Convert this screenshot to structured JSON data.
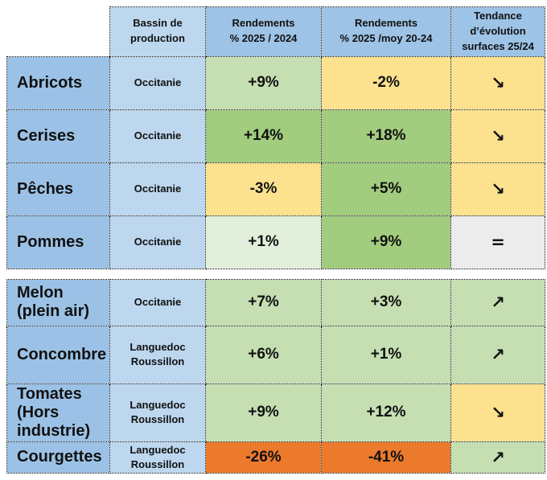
{
  "colors": {
    "header_blue": "#9DC3E6",
    "light_blue": "#BDD7EE",
    "name_blue": "#9BC2E6",
    "light_green": "#C5DFB3",
    "med_green": "#A2CC7E",
    "pale_green": "#E2EFDA",
    "yellow": "#FCE18F",
    "orange": "#EC7A2C",
    "gray": "#ECECEC",
    "border": "#000000"
  },
  "chart_data": {
    "type": "table",
    "columns": [
      {
        "label": "Bassin de\nproduction",
        "bg": "light_blue"
      },
      {
        "label": "Rendements\n% 2025 / 2024",
        "bg": "header_blue"
      },
      {
        "label": "Rendements\n% 2025 /moy 20-24",
        "bg": "header_blue"
      },
      {
        "label": "Tendance\nd’évolution\nsurfaces 25/24",
        "bg": "header_blue"
      }
    ],
    "rows": [
      {
        "section": "fruits",
        "name": "Abricots",
        "bassin": "Occitanie",
        "r1": "+9%",
        "r1_color": "light_green",
        "r2": "-2%",
        "r2_color": "yellow",
        "trend": "↘",
        "trend_color": "yellow"
      },
      {
        "section": "fruits",
        "name": "Cerises",
        "bassin": "Occitanie",
        "r1": "+14%",
        "r1_color": "med_green",
        "r2": "+18%",
        "r2_color": "med_green",
        "trend": "↘",
        "trend_color": "yellow"
      },
      {
        "section": "fruits",
        "name": "Pêches",
        "bassin": "Occitanie",
        "r1": "-3%",
        "r1_color": "yellow",
        "r2": "+5%",
        "r2_color": "med_green",
        "trend": "↘",
        "trend_color": "yellow"
      },
      {
        "section": "fruits",
        "name": "Pommes",
        "bassin": "Occitanie",
        "r1": "+1%",
        "r1_color": "pale_green",
        "r2": "+9%",
        "r2_color": "med_green",
        "trend": "=",
        "trend_color": "gray"
      },
      {
        "section": "vegetables",
        "name": "Melon",
        "name_sub": "(plein air)",
        "bassin": "Occitanie",
        "r1": "+7%",
        "r1_color": "light_green",
        "r2": "+3%",
        "r2_color": "light_green",
        "trend": "↗",
        "trend_color": "light_green"
      },
      {
        "section": "vegetables",
        "name": "Concombre",
        "bassin": "Languedoc\nRoussillon",
        "r1": "+6%",
        "r1_color": "light_green",
        "r2": "+1%",
        "r2_color": "light_green",
        "trend": "↗",
        "trend_color": "light_green"
      },
      {
        "section": "vegetables",
        "name": "Tomates",
        "name_sub": "(Hors industrie)",
        "bassin": "Languedoc\nRoussillon",
        "r1": "+9%",
        "r1_color": "light_green",
        "r2": "+12%",
        "r2_color": "light_green",
        "trend": "↘",
        "trend_color": "yellow"
      },
      {
        "section": "vegetables",
        "name": "Courgettes",
        "bassin": "Languedoc\nRoussillon",
        "r1": "-26%",
        "r1_color": "orange",
        "r2": "-41%",
        "r2_color": "orange",
        "trend": "↗",
        "trend_color": "light_green"
      }
    ]
  }
}
